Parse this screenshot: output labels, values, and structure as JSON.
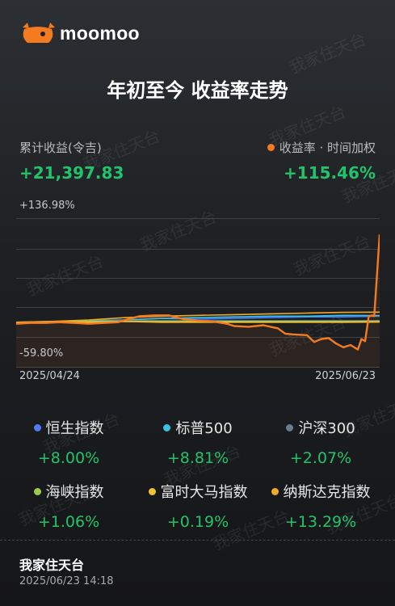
{
  "brand": {
    "name": "moomoo"
  },
  "title": "年初至今 收益率走势",
  "summary": {
    "left_label": "累计收益(令吉)",
    "left_value": "+21,397.83",
    "right_label": "收益率 · 时间加权",
    "right_value": "+115.46%",
    "right_dot_color": "#f47b20"
  },
  "chart": {
    "y_max_label": "+136.98%",
    "y_min_label": "-59.80%",
    "x_start_label": "2025/04/24",
    "x_end_label": "2025/06/23"
  },
  "chart_data": {
    "type": "line",
    "x_range": [
      "2025/04/24",
      "2025/06/23"
    ],
    "ylim": [
      -59.8,
      136.98
    ],
    "series": [
      {
        "name": "收益率",
        "color": "#f47b20",
        "x": [
          0,
          0.04,
          0.08,
          0.12,
          0.16,
          0.2,
          0.24,
          0.28,
          0.3,
          0.34,
          0.38,
          0.42,
          0.46,
          0.5,
          0.54,
          0.58,
          0.6,
          0.64,
          0.68,
          0.7,
          0.72,
          0.74,
          0.76,
          0.8,
          0.82,
          0.84,
          0.86,
          0.88,
          0.9,
          0.92,
          0.94,
          0.95,
          0.96,
          0.97,
          0.98,
          0.985,
          1.0
        ],
        "y": [
          -2,
          -1,
          -1,
          0,
          -1,
          -2,
          -1,
          0,
          3,
          8,
          9,
          9,
          4,
          2,
          1,
          -2,
          -5,
          -6,
          -4,
          -6,
          -8,
          -15,
          -16,
          -17,
          -26,
          -22,
          -21,
          -28,
          -33,
          -30,
          -36,
          -22,
          -25,
          8,
          9,
          8,
          115.46
        ]
      },
      {
        "name": "恒生指数",
        "color": "#4f7bf7",
        "x": [
          0,
          0.1,
          0.2,
          0.3,
          0.4,
          0.5,
          0.6,
          0.7,
          0.8,
          0.9,
          1.0
        ],
        "y": [
          0,
          0,
          1,
          3,
          5,
          4,
          5,
          6,
          7,
          7,
          8.0
        ]
      },
      {
        "name": "标普500",
        "color": "#36c3e6",
        "x": [
          0,
          0.1,
          0.2,
          0.3,
          0.4,
          0.5,
          0.6,
          0.7,
          0.8,
          0.9,
          1.0
        ],
        "y": [
          0,
          1,
          2,
          3,
          5,
          6,
          7,
          8,
          8,
          9,
          8.81
        ]
      },
      {
        "name": "沪深300",
        "color": "#6b7b8c",
        "x": [
          0,
          0.1,
          0.2,
          0.3,
          0.4,
          0.5,
          0.6,
          0.7,
          0.8,
          0.9,
          1.0
        ],
        "y": [
          0,
          0,
          1,
          2,
          2,
          2,
          2,
          2,
          2,
          2,
          2.07
        ]
      },
      {
        "name": "海峡指数",
        "color": "#9ccc4a",
        "x": [
          0,
          0.1,
          0.2,
          0.3,
          0.4,
          0.5,
          0.6,
          0.7,
          0.8,
          0.9,
          1.0
        ],
        "y": [
          0,
          0,
          1,
          1,
          1,
          1,
          1,
          1,
          1,
          1,
          1.06
        ]
      },
      {
        "name": "富时大马指数",
        "color": "#f2c230",
        "x": [
          0,
          0.1,
          0.2,
          0.3,
          0.4,
          0.5,
          0.6,
          0.7,
          0.8,
          0.9,
          1.0
        ],
        "y": [
          0,
          0,
          0,
          1,
          0,
          0,
          0,
          0,
          0,
          0,
          0.19
        ]
      },
      {
        "name": "纳斯达克指数",
        "color": "#f0a928",
        "x": [
          0,
          0.1,
          0.2,
          0.3,
          0.4,
          0.5,
          0.6,
          0.7,
          0.8,
          0.9,
          1.0
        ],
        "y": [
          0,
          1,
          3,
          6,
          8,
          9,
          10,
          11,
          12,
          13,
          13.29
        ]
      }
    ]
  },
  "legend": [
    {
      "name": "恒生指数",
      "value": "+8.00%",
      "color": "#4f7bf7"
    },
    {
      "name": "标普500",
      "value": "+8.81%",
      "color": "#36c3e6"
    },
    {
      "name": "沪深300",
      "value": "+2.07%",
      "color": "#6b7b8c"
    },
    {
      "name": "海峡指数",
      "value": "+1.06%",
      "color": "#9ccc4a"
    },
    {
      "name": "富时大马指数",
      "value": "+0.19%",
      "color": "#f2c230"
    },
    {
      "name": "纳斯达克指数",
      "value": "+13.29%",
      "color": "#f0a928"
    }
  ],
  "footer": {
    "name": "我家住天台",
    "timestamp": "2025/06/23 14:18"
  },
  "watermark": "我家住天台"
}
